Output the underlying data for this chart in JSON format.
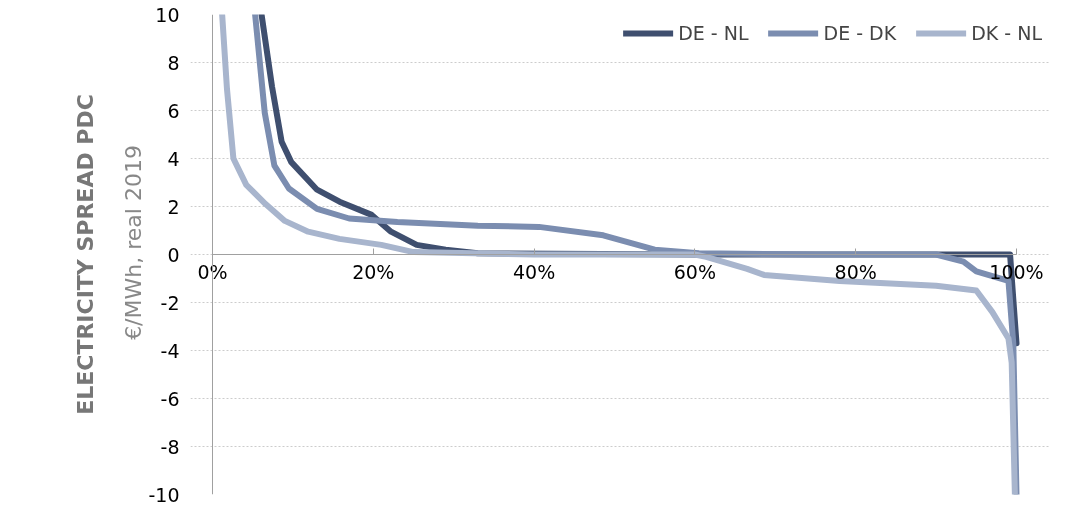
{
  "chart_data": {
    "type": "line",
    "ylabel": "ELECTRICITY SPREAD PDC",
    "annotations": [
      "€/MWh, real 2019"
    ],
    "xlim": [
      0,
      100
    ],
    "xticks": [
      {
        "value": 0,
        "label": "0%"
      },
      {
        "value": 20,
        "label": "20%"
      },
      {
        "value": 40,
        "label": "40%"
      },
      {
        "value": 60,
        "label": "60%"
      },
      {
        "value": 80,
        "label": "80%"
      },
      {
        "value": 100,
        "label": "100%"
      }
    ],
    "ylim": [
      -10,
      10
    ],
    "yticks": [
      -10,
      -8,
      -6,
      -4,
      -2,
      0,
      2,
      4,
      6,
      8,
      10
    ],
    "grid": "y",
    "legend": "top right",
    "line_style": "solid",
    "marker": "none",
    "series": [
      {
        "name": "DE - NL",
        "color": "#3f4f6f",
        "x": [
          6.1,
          7.4,
          8.6,
          9.8,
          13,
          15.8,
          19.8,
          22.2,
          25.4,
          29,
          33,
          60,
          90,
          99.2,
          100
        ],
        "values": [
          10,
          7,
          4.7,
          3.85,
          2.7,
          2.2,
          1.65,
          0.95,
          0.4,
          0.2,
          0.05,
          0,
          0,
          0,
          -3.7
        ]
      },
      {
        "name": "DE - DK",
        "color": "#7b8db0",
        "x": [
          5.3,
          6.5,
          7.7,
          9.5,
          13,
          17,
          23,
          33,
          40.6,
          48.6,
          55,
          60.5,
          75,
          90,
          93.4,
          95,
          99,
          99.6,
          100
        ],
        "values": [
          10,
          5.9,
          3.7,
          2.75,
          1.9,
          1.5,
          1.35,
          1.2,
          1.15,
          0.8,
          0.2,
          0.05,
          0,
          0,
          -0.3,
          -0.7,
          -1.1,
          -3.7,
          -10
        ]
      },
      {
        "name": "DK - NL",
        "color": "#a8b5cd",
        "x": [
          1.2,
          1.8,
          2.6,
          4.2,
          6.6,
          9,
          11.9,
          15.8,
          21,
          25,
          40,
          60,
          61.4,
          66.5,
          68.6,
          78,
          90,
          95,
          97,
          99,
          99.4,
          99.8
        ],
        "values": [
          10,
          6.9,
          4,
          2.9,
          2.1,
          1.4,
          0.95,
          0.65,
          0.4,
          0.1,
          0,
          0,
          -0.1,
          -0.6,
          -0.85,
          -1.1,
          -1.3,
          -1.5,
          -2.4,
          -3.5,
          -4.5,
          -10
        ]
      }
    ]
  }
}
